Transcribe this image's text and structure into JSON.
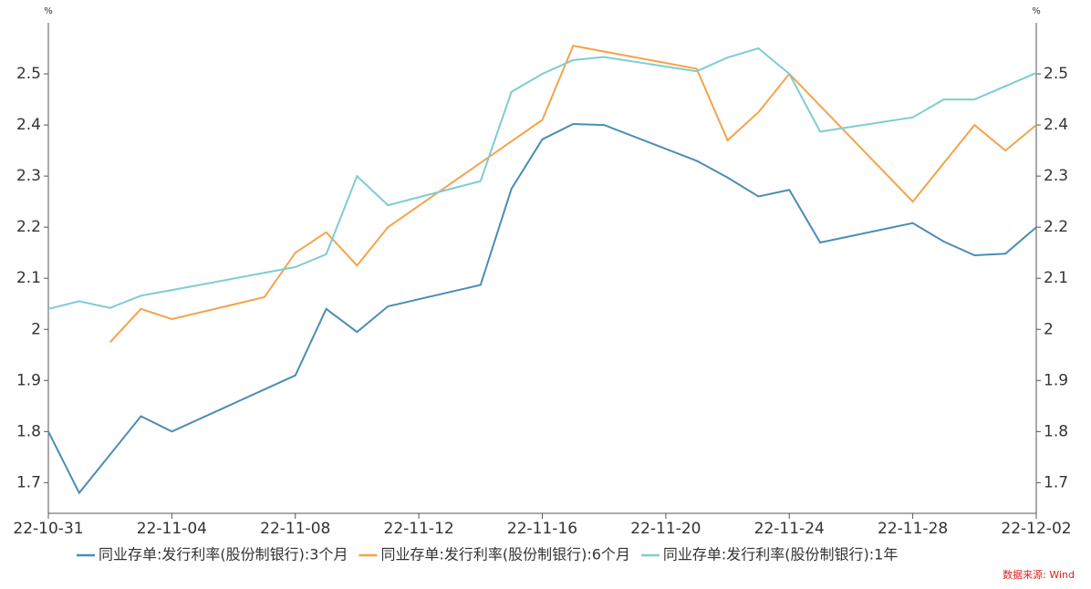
{
  "chart_data": {
    "type": "line",
    "y_unit": "%",
    "y2_unit": "%",
    "xlim": [
      "22-10-31",
      "22-12-02"
    ],
    "xticks": [
      "22-10-31",
      "22-11-04",
      "22-11-08",
      "22-11-12",
      "22-11-16",
      "22-11-20",
      "22-11-24",
      "22-11-28",
      "22-12-02"
    ],
    "ylim": [
      1.64,
      2.6
    ],
    "yticks": [
      1.7,
      1.8,
      1.9,
      2,
      2.1,
      2.2,
      2.3,
      2.4,
      2.5
    ],
    "grid": false,
    "series": [
      {
        "name": "同业存单:发行利率(股份制银行):3个月",
        "color": "#4a8db5",
        "x": [
          "22-10-31",
          "22-11-01",
          "22-11-03",
          "22-11-04",
          "22-11-08",
          "22-11-09",
          "22-11-10",
          "22-11-11",
          "22-11-14",
          "22-11-15",
          "22-11-16",
          "22-11-17",
          "22-11-18",
          "22-11-21",
          "22-11-22",
          "22-11-23",
          "22-11-24",
          "22-11-25",
          "22-11-28",
          "22-11-29",
          "22-11-30",
          "22-12-01",
          "22-12-02"
        ],
        "values": [
          1.8,
          1.68,
          1.83,
          1.8,
          1.91,
          2.04,
          1.995,
          2.045,
          2.087,
          2.275,
          2.372,
          2.402,
          2.4,
          2.33,
          2.297,
          2.26,
          2.273,
          2.17,
          2.208,
          2.172,
          2.145,
          2.148,
          2.2
        ]
      },
      {
        "name": "同业存单:发行利率(股份制银行):6个月",
        "color": "#f5a34a",
        "x": [
          "22-11-02",
          "22-11-03",
          "22-11-04",
          "22-11-07",
          "22-11-08",
          "22-11-09",
          "22-11-10",
          "22-11-11",
          "22-11-16",
          "22-11-17",
          "22-11-21",
          "22-11-22",
          "22-11-23",
          "22-11-24",
          "22-11-28",
          "22-11-30",
          "22-12-01",
          "22-12-02"
        ],
        "values": [
          1.975,
          2.04,
          2.02,
          2.063,
          2.15,
          2.19,
          2.125,
          2.2,
          2.41,
          2.555,
          2.51,
          2.37,
          2.425,
          2.5,
          2.25,
          2.4,
          2.35,
          2.4
        ]
      },
      {
        "name": "同业存单:发行利率(股份制银行):1年",
        "color": "#7ecdd0",
        "x": [
          "22-10-31",
          "22-11-01",
          "22-11-02",
          "22-11-03",
          "22-11-04",
          "22-11-08",
          "22-11-09",
          "22-11-10",
          "22-11-11",
          "22-11-14",
          "22-11-15",
          "22-11-16",
          "22-11-17",
          "22-11-18",
          "22-11-21",
          "22-11-22",
          "22-11-23",
          "22-11-24",
          "22-11-25",
          "22-11-28",
          "22-11-29",
          "22-11-30",
          "22-12-02"
        ],
        "values": [
          2.04,
          2.055,
          2.042,
          2.066,
          2.077,
          2.122,
          2.147,
          2.3,
          2.243,
          2.29,
          2.465,
          2.5,
          2.527,
          2.533,
          2.505,
          2.532,
          2.55,
          2.5,
          2.387,
          2.415,
          2.45,
          2.45,
          2.502
        ]
      }
    ],
    "legend": "bottom",
    "source": "数据来源: Wind"
  }
}
